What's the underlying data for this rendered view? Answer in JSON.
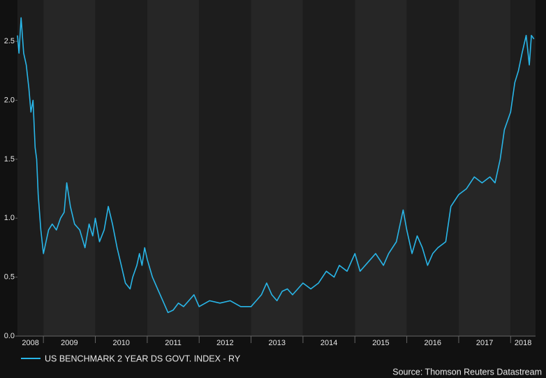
{
  "chart_data": {
    "type": "line",
    "legend": "US BENCHMARK 2 YEAR DS GOVT. INDEX - RY",
    "source": "Source: Thomson Reuters Datastream",
    "color": "#29b6e8",
    "xlim": [
      2008.5,
      2018.48
    ],
    "ylim": [
      0,
      2.75
    ],
    "xticks": [
      2008,
      2009,
      2010,
      2011,
      2012,
      2013,
      2014,
      2015,
      2016,
      2017,
      2018
    ],
    "yticks": [
      {
        "value": 0,
        "label": "0.0"
      },
      0.5,
      {
        "value": 1,
        "label": "1.0"
      },
      1.5,
      {
        "value": 2,
        "label": "2.0"
      },
      2.5
    ],
    "x": [
      2008.5,
      2008.53,
      2008.57,
      2008.62,
      2008.67,
      2008.72,
      2008.76,
      2008.8,
      2008.84,
      2008.87,
      2008.9,
      2008.95,
      2009.0,
      2009.05,
      2009.1,
      2009.17,
      2009.25,
      2009.33,
      2009.4,
      2009.45,
      2009.52,
      2009.6,
      2009.7,
      2009.8,
      2009.88,
      2009.95,
      2010.0,
      2010.08,
      2010.17,
      2010.25,
      2010.33,
      2010.42,
      2010.5,
      2010.58,
      2010.67,
      2010.72,
      2010.8,
      2010.85,
      2010.9,
      2010.95,
      2011.0,
      2011.1,
      2011.2,
      2011.3,
      2011.4,
      2011.5,
      2011.6,
      2011.7,
      2011.8,
      2011.9,
      2012.0,
      2012.2,
      2012.4,
      2012.6,
      2012.8,
      2013.0,
      2013.1,
      2013.2,
      2013.3,
      2013.4,
      2013.5,
      2013.6,
      2013.7,
      2013.8,
      2013.9,
      2014.0,
      2014.15,
      2014.3,
      2014.45,
      2014.6,
      2014.7,
      2014.85,
      2015.0,
      2015.1,
      2015.2,
      2015.3,
      2015.4,
      2015.55,
      2015.65,
      2015.8,
      2015.93,
      2016.0,
      2016.1,
      2016.2,
      2016.3,
      2016.4,
      2016.5,
      2016.6,
      2016.75,
      2016.85,
      2017.0,
      2017.15,
      2017.3,
      2017.45,
      2017.6,
      2017.7,
      2017.8,
      2017.88,
      2018.0,
      2018.08,
      2018.15,
      2018.22,
      2018.3,
      2018.36,
      2018.4,
      2018.45
    ],
    "values": [
      2.55,
      2.4,
      2.7,
      2.4,
      2.3,
      2.1,
      1.9,
      2.0,
      1.6,
      1.5,
      1.2,
      0.9,
      0.7,
      0.8,
      0.9,
      0.95,
      0.9,
      1.0,
      1.05,
      1.3,
      1.1,
      0.95,
      0.9,
      0.75,
      0.95,
      0.85,
      1.0,
      0.8,
      0.9,
      1.1,
      0.95,
      0.75,
      0.6,
      0.45,
      0.4,
      0.5,
      0.6,
      0.7,
      0.6,
      0.75,
      0.65,
      0.5,
      0.4,
      0.3,
      0.2,
      0.22,
      0.28,
      0.25,
      0.3,
      0.35,
      0.25,
      0.3,
      0.28,
      0.3,
      0.25,
      0.25,
      0.3,
      0.35,
      0.45,
      0.35,
      0.3,
      0.38,
      0.4,
      0.35,
      0.4,
      0.45,
      0.4,
      0.45,
      0.55,
      0.5,
      0.6,
      0.55,
      0.7,
      0.55,
      0.6,
      0.65,
      0.7,
      0.6,
      0.7,
      0.8,
      1.07,
      0.9,
      0.7,
      0.85,
      0.75,
      0.6,
      0.7,
      0.75,
      0.8,
      1.1,
      1.2,
      1.25,
      1.35,
      1.3,
      1.35,
      1.3,
      1.5,
      1.75,
      1.9,
      2.15,
      2.25,
      2.4,
      2.55,
      2.3,
      2.55,
      2.52
    ]
  }
}
